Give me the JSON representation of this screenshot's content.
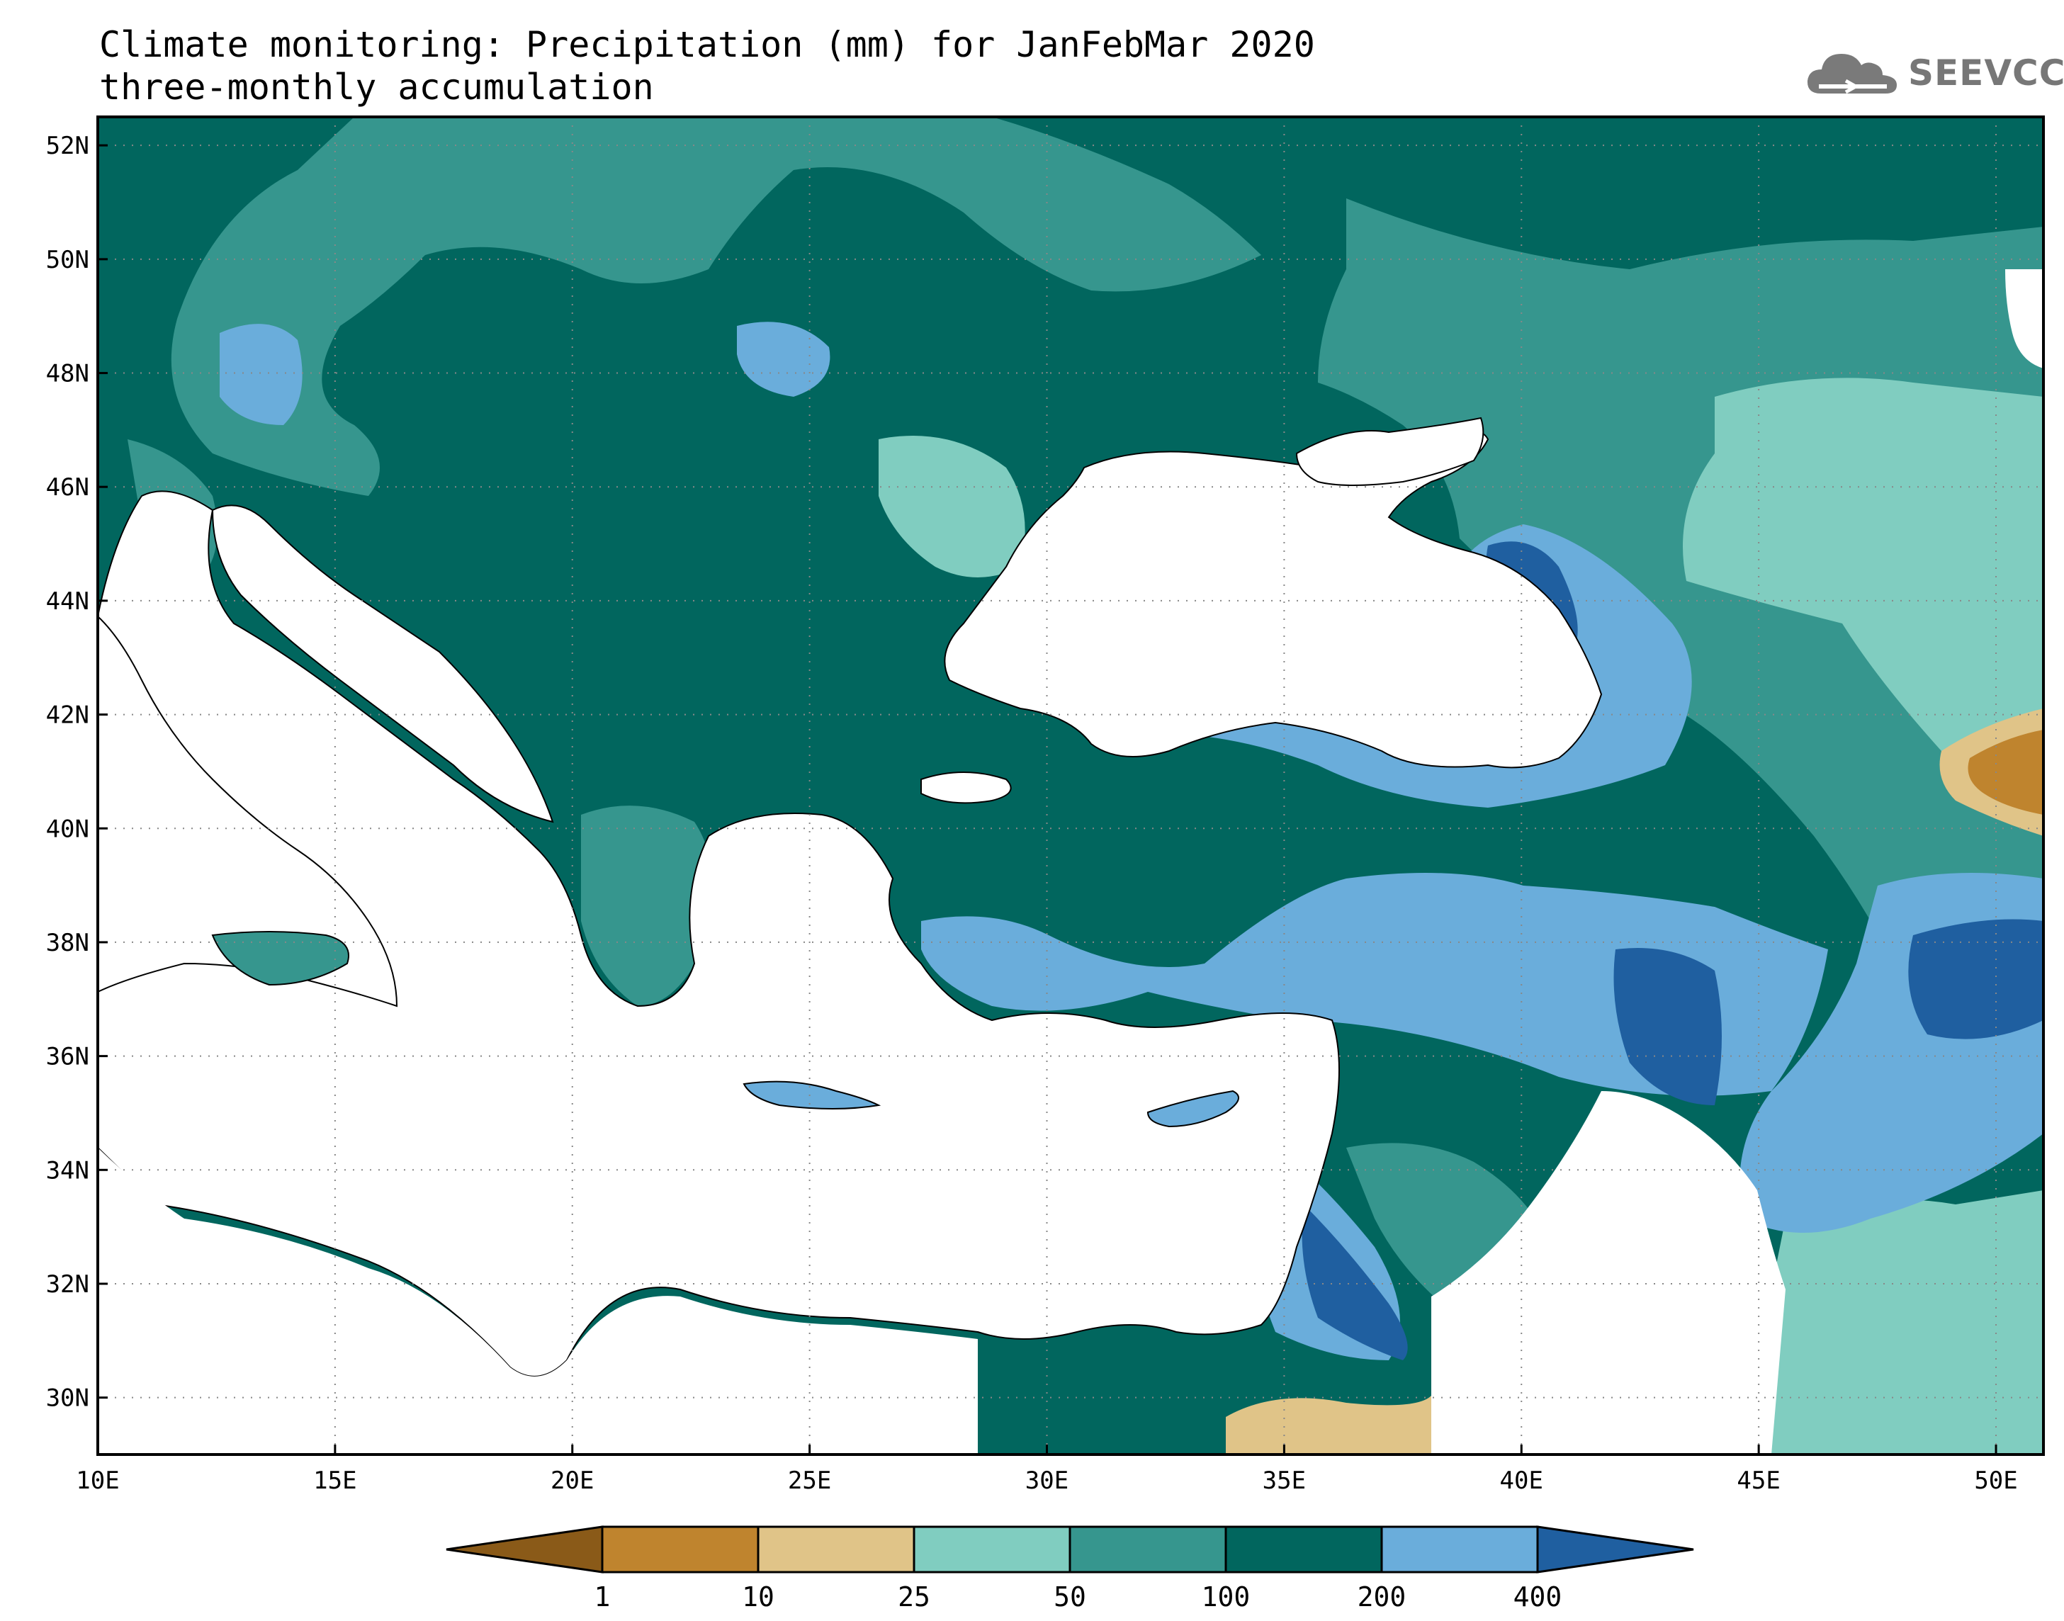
{
  "title": {
    "line1": "Climate monitoring: Precipitation (mm) for JanFebMar 2020",
    "line2": "three-monthly accumulation"
  },
  "logo": {
    "text": "SEEVCCC",
    "icon": "cloud-icon"
  },
  "map": {
    "lon_range": [
      10,
      51
    ],
    "lat_range": [
      29,
      52.5
    ],
    "lon_ticks": [
      {
        "value": 10,
        "label": "10E"
      },
      {
        "value": 15,
        "label": "15E"
      },
      {
        "value": 20,
        "label": "20E"
      },
      {
        "value": 25,
        "label": "25E"
      },
      {
        "value": 30,
        "label": "30E"
      },
      {
        "value": 35,
        "label": "35E"
      },
      {
        "value": 40,
        "label": "40E"
      },
      {
        "value": 45,
        "label": "45E"
      },
      {
        "value": 50,
        "label": "50E"
      }
    ],
    "lat_ticks": [
      {
        "value": 30,
        "label": "30N"
      },
      {
        "value": 32,
        "label": "32N"
      },
      {
        "value": 34,
        "label": "34N"
      },
      {
        "value": 36,
        "label": "36N"
      },
      {
        "value": 38,
        "label": "38N"
      },
      {
        "value": 40,
        "label": "40N"
      },
      {
        "value": 42,
        "label": "42N"
      },
      {
        "value": 44,
        "label": "44N"
      },
      {
        "value": 46,
        "label": "46N"
      },
      {
        "value": 48,
        "label": "48N"
      },
      {
        "value": 50,
        "label": "50N"
      },
      {
        "value": 52,
        "label": "52N"
      }
    ],
    "grid": "dotted"
  },
  "colorbar": {
    "colors": [
      "#8a5a18",
      "#bf842e",
      "#e0c488",
      "#80cdc0",
      "#36968e",
      "#01665e",
      "#6aaddb",
      "#1f5fa0"
    ],
    "labels": [
      "1",
      "10",
      "25",
      "50",
      "100",
      "200",
      "400"
    ]
  }
}
